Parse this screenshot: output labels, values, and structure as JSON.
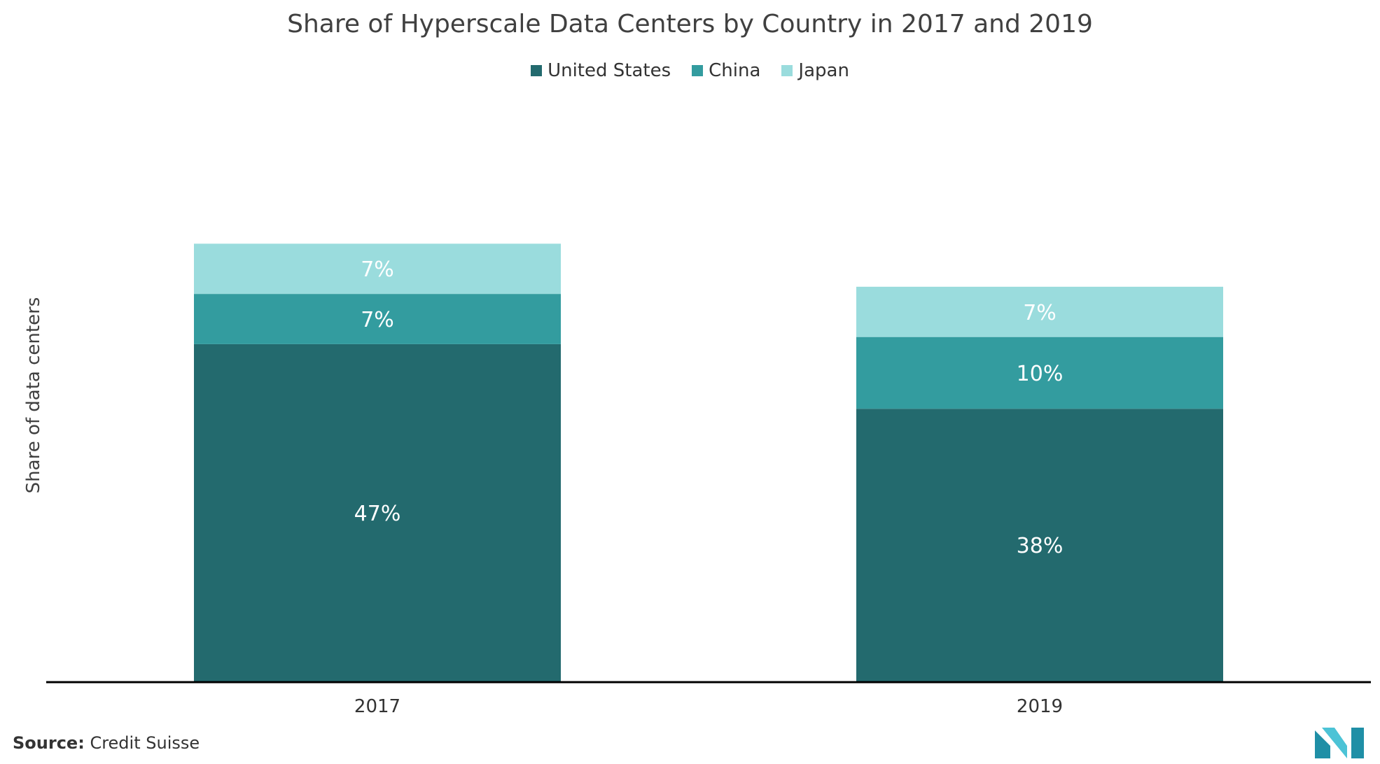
{
  "chart_data": {
    "type": "bar",
    "stacked": true,
    "title": "Share of Hyperscale Data Centers by Country in 2017 and 2019",
    "xlabel": "",
    "ylabel": "Share of data centers",
    "categories": [
      "2017",
      "2019"
    ],
    "series": [
      {
        "name": "United States",
        "color": "#236a6e",
        "values": [
          47,
          38
        ],
        "labels": [
          "47%",
          "38%"
        ]
      },
      {
        "name": "China",
        "color": "#339c9f",
        "values": [
          7,
          10
        ],
        "labels": [
          "7%",
          "10%"
        ]
      },
      {
        "name": "Japan",
        "color": "#9adcdd",
        "values": [
          7,
          7
        ],
        "labels": [
          "7%",
          "7%"
        ]
      }
    ],
    "ylim": [
      0,
      70
    ],
    "grid": false,
    "legend": "top-center"
  },
  "source": {
    "key": "Source:",
    "value": "Credit Suisse"
  },
  "logo": {
    "icon": "mordor-logo-icon",
    "colors": [
      "#1f8fa6",
      "#4cc3d6"
    ]
  }
}
